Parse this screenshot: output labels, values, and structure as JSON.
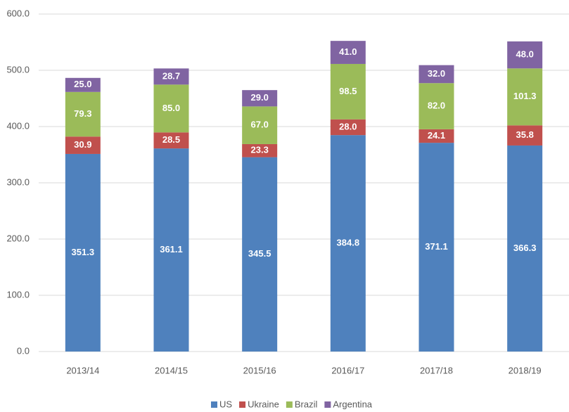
{
  "chart_data": {
    "type": "stacked_bar",
    "categories": [
      "2013/14",
      "2014/15",
      "2015/16",
      "2016/17",
      "2017/18",
      "2018/19"
    ],
    "series": [
      {
        "name": "US",
        "color": "#4f81bd",
        "values": [
          351.3,
          361.1,
          345.5,
          384.8,
          371.1,
          366.3
        ],
        "value_labels": [
          "351.3",
          "361.1",
          "345.5",
          "384.8",
          "371.1",
          "366.3"
        ]
      },
      {
        "name": "Ukraine",
        "color": "#c0504d",
        "values": [
          30.9,
          28.5,
          23.3,
          28.0,
          24.1,
          35.8
        ],
        "value_labels": [
          "30.9",
          "28.5",
          "23.3",
          "28.0",
          "24.1",
          "35.8"
        ]
      },
      {
        "name": "Brazil",
        "color": "#9bbb59",
        "values": [
          79.3,
          85.0,
          67.0,
          98.5,
          82.0,
          101.3
        ],
        "value_labels": [
          "79.3",
          "85.0",
          "67.0",
          "98.5",
          "82.0",
          "101.3"
        ]
      },
      {
        "name": "Argentina",
        "color": "#8064a2",
        "values": [
          25.0,
          28.7,
          29.0,
          41.0,
          32.0,
          48.0
        ],
        "value_labels": [
          "25.0",
          "28.7",
          "29.0",
          "41.0",
          "32.0",
          "48.0"
        ]
      }
    ],
    "ylim": [
      0,
      600
    ],
    "yticks": [
      {
        "value": 0,
        "label": "0.0"
      },
      {
        "value": 100,
        "label": "100.0"
      },
      {
        "value": 200,
        "label": "200.0"
      },
      {
        "value": 300,
        "label": "300.0"
      },
      {
        "value": 400,
        "label": "400.0"
      },
      {
        "value": 500,
        "label": "500.0"
      },
      {
        "value": 600,
        "label": "600.0"
      }
    ],
    "grid": true,
    "legend": "bottom"
  }
}
